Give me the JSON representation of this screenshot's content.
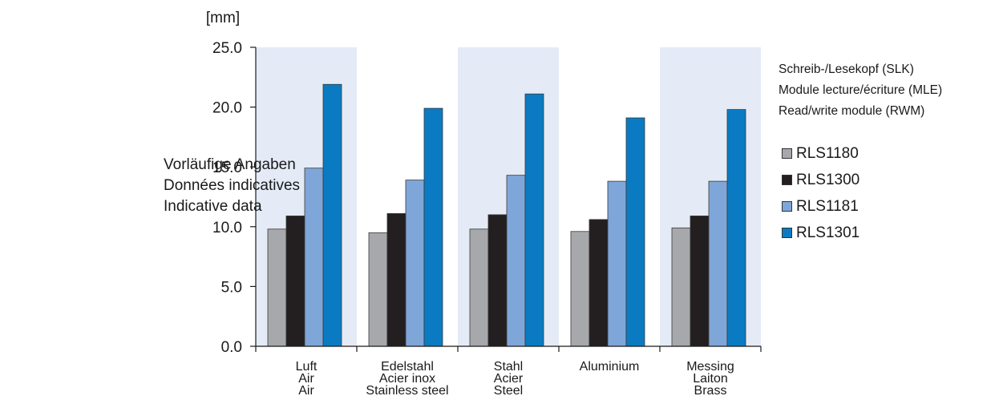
{
  "side_note": [
    "Vorläufige Angaben",
    "Données indicatives",
    "Indicative data"
  ],
  "legend_heading": [
    "Schreib-/Lesekopf (SLK)",
    "Module lecture/écriture (MLE)",
    "Read/write module (RWM)"
  ],
  "colors": {
    "band": "#e4ebf7",
    "RLS1180": "#a6a8ab",
    "RLS1300": "#231f20",
    "RLS1181": "#7fa6d8",
    "RLS1301": "#0a7bc2"
  },
  "chart_data": {
    "type": "bar",
    "ylabel": "[mm]",
    "ylim": [
      0,
      25
    ],
    "yticks": [
      "0.0",
      "5.0",
      "10.0",
      "15.0",
      "20.0",
      "25.0"
    ],
    "categories": [
      [
        "Luft",
        "Air",
        "Air"
      ],
      [
        "Edelstahl",
        "Acier inox",
        "Stainless steel"
      ],
      [
        "Stahl",
        "Acier",
        "Steel"
      ],
      [
        "Aluminium"
      ],
      [
        "Messing",
        "Laiton",
        "Brass"
      ]
    ],
    "series": [
      {
        "name": "RLS1180",
        "values": [
          9.8,
          9.5,
          9.8,
          9.6,
          9.9
        ]
      },
      {
        "name": "RLS1300",
        "values": [
          10.9,
          11.1,
          11.0,
          10.6,
          10.9
        ]
      },
      {
        "name": "RLS1181",
        "values": [
          14.9,
          13.9,
          14.3,
          13.8,
          13.8
        ]
      },
      {
        "name": "RLS1301",
        "values": [
          21.9,
          19.9,
          21.1,
          19.1,
          19.8
        ]
      }
    ],
    "background_bands": "alternating",
    "legend_position": "right",
    "grid": false
  }
}
